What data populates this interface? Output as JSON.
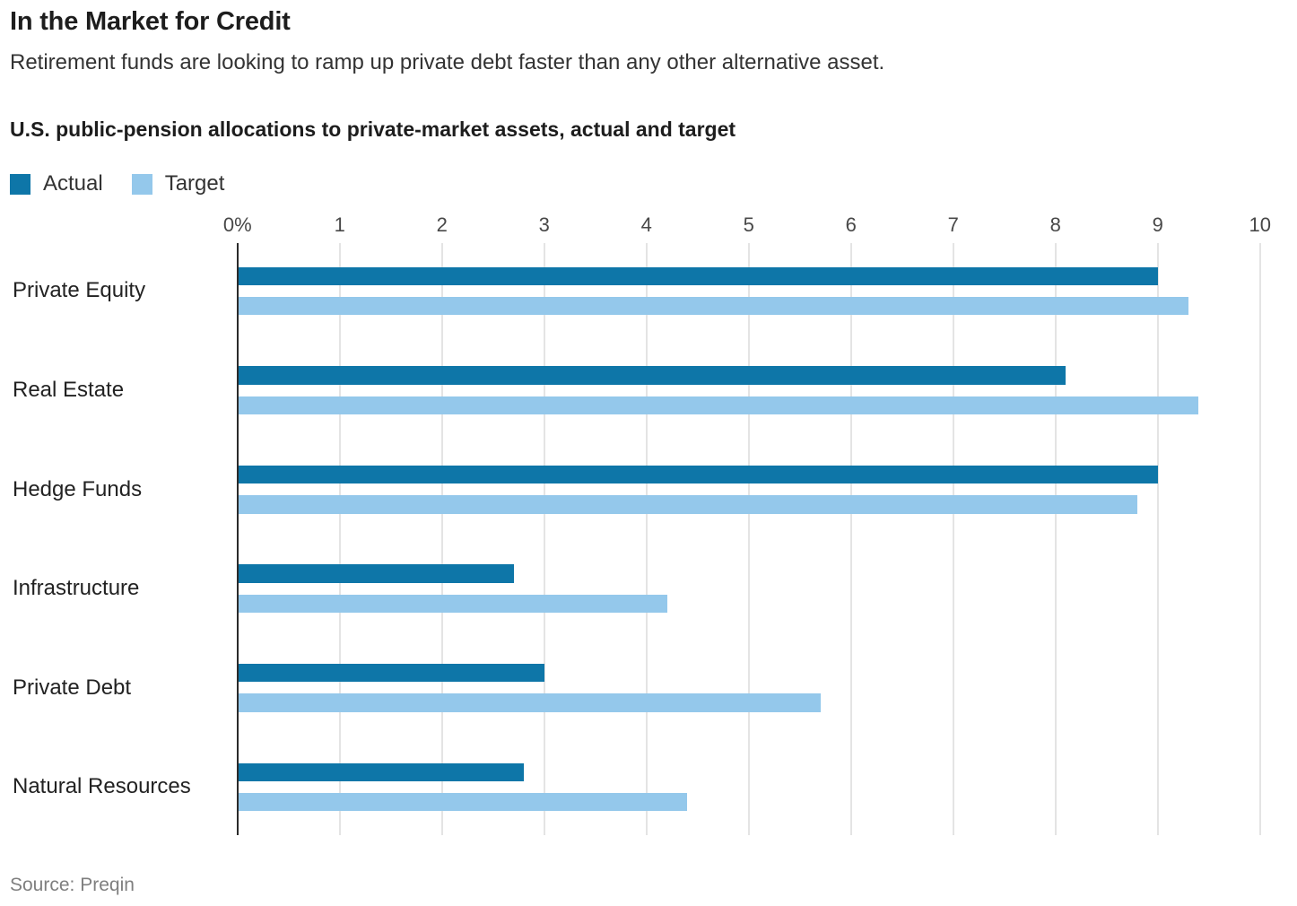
{
  "title": "In the Market for Credit",
  "subtitle": "Retirement funds are looking to ramp up private debt faster than any other alternative asset.",
  "chart_label": "U.S. public-pension allocations to private-market assets, actual and target",
  "source": "Source: Preqin",
  "colors": {
    "actual": "#0e76a8",
    "target": "#94c8eb",
    "gridline": "#e4e4e4",
    "axis": "#2b2b2b"
  },
  "chart_data": {
    "type": "bar",
    "orientation": "horizontal",
    "title": "U.S. public-pension allocations to private-market assets, actual and target",
    "categories": [
      "Private Equity",
      "Real Estate",
      "Hedge Funds",
      "Infrastructure",
      "Private Debt",
      "Natural Resources"
    ],
    "series": [
      {
        "name": "Actual",
        "color": "#0e76a8",
        "values": [
          9.0,
          8.1,
          9.0,
          2.7,
          3.0,
          2.8
        ]
      },
      {
        "name": "Target",
        "color": "#94c8eb",
        "values": [
          9.3,
          9.4,
          8.8,
          4.2,
          5.7,
          4.4
        ]
      }
    ],
    "xlim": [
      0,
      10
    ],
    "x_ticks": [
      "0%",
      "1",
      "2",
      "3",
      "4",
      "5",
      "6",
      "7",
      "8",
      "9",
      "10"
    ],
    "unit": "percent",
    "grid": true,
    "legend_position": "top-left"
  }
}
